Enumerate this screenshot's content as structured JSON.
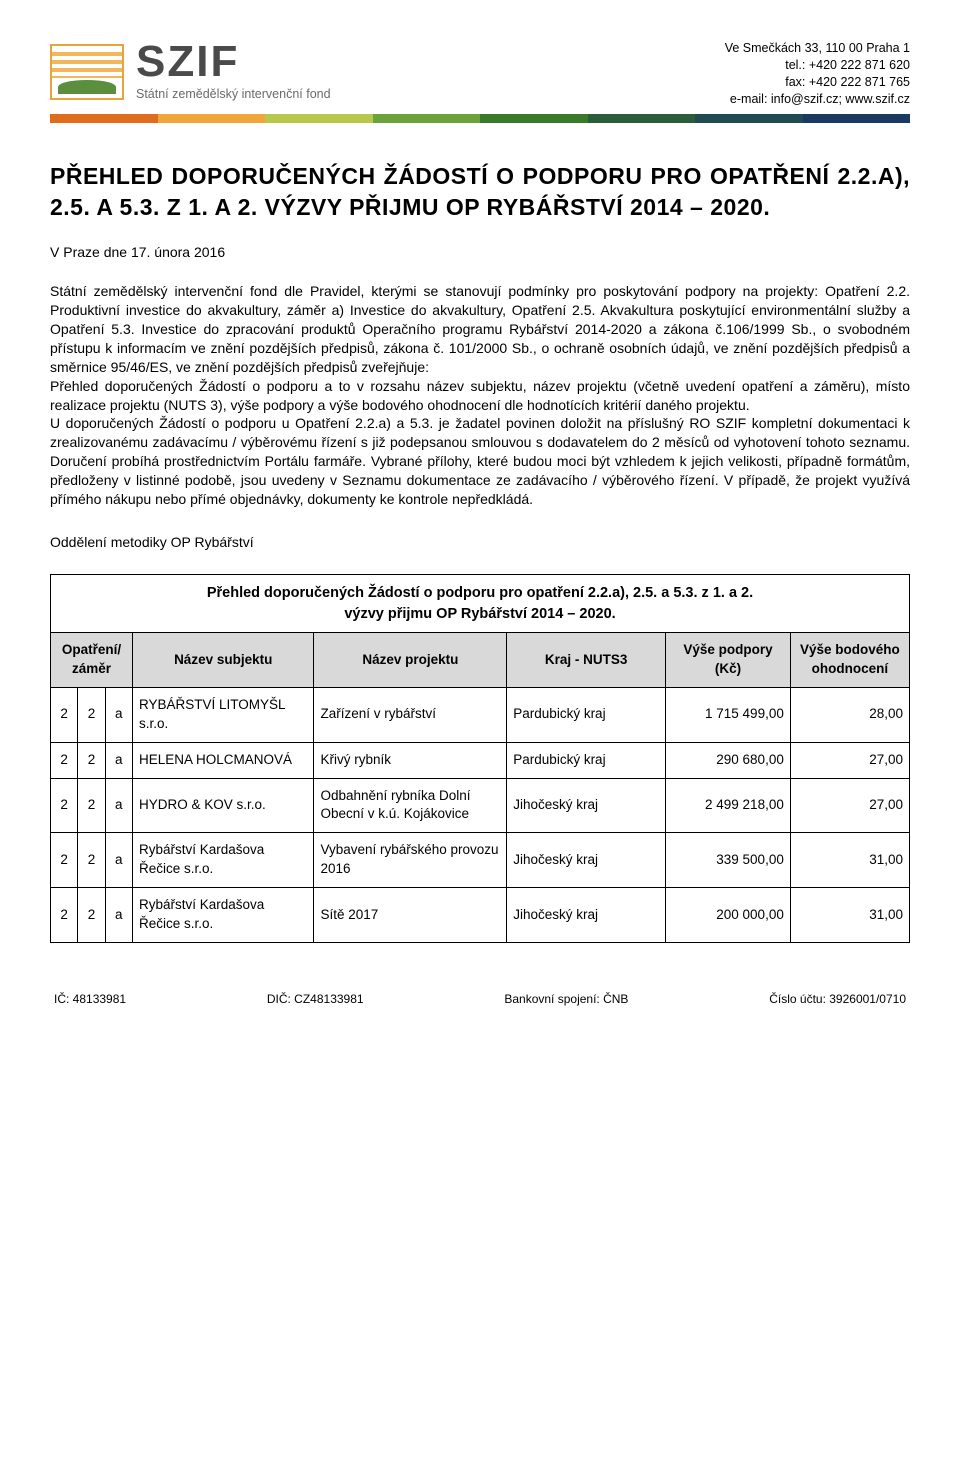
{
  "header": {
    "logo_main": "SZIF",
    "logo_sub": "Státní zemědělský intervenční fond",
    "address": {
      "line1": "Ve Smečkách 33, 110 00 Praha 1",
      "line2": "tel.: +420 222 871 620",
      "line3": "fax: +420 222 871 765",
      "line4": "e-mail: info@szif.cz; www.szif.cz"
    },
    "bar_colors": [
      "#e06c1d",
      "#f0a63a",
      "#b7c84a",
      "#6aa33b",
      "#3a7a2a",
      "#2a5e3a",
      "#1f4c50",
      "#1a3a60"
    ]
  },
  "title": "PŘEHLED DOPORUČENÝCH ŽÁDOSTÍ O PODPORU PRO OPATŘENÍ 2.2.A), 2.5. A 5.3. Z 1. A 2. VÝZVY PŘIJMU OP RYBÁŘSTVÍ 2014 – 2020.",
  "date_line": "V Praze dne 17. února 2016",
  "body": {
    "p1": "Státní zemědělský intervenční fond dle Pravidel, kterými se stanovují podmínky pro poskytování podpory na projekty: Opatření 2.2. Produktivní investice do akvakultury, záměr a) Investice do akvakultury, Opatření 2.5. Akvakultura poskytující environmentální služby a Opatření 5.3. Investice do zpracování produktů Operačního programu Rybářství 2014-2020 a zákona č.106/1999 Sb., o svobodném přístupu k informacím ve znění pozdějších předpisů, zákona č. 101/2000 Sb., o ochraně osobních údajů, ve znění pozdějších předpisů a směrnice 95/46/ES, ve znění pozdějších předpisů zveřejňuje:",
    "p2": "Přehled doporučených Žádostí o podporu a to v rozsahu název subjektu, název projektu (včetně uvedení opatření a záměru), místo realizace projektu (NUTS 3), výše podpory a výše bodového ohodnocení dle hodnotících kritérií daného projektu.",
    "p3": "U doporučených Žádostí o podporu u Opatření 2.2.a) a 5.3. je žadatel povinen doložit na příslušný RO SZIF kompletní dokumentaci k zrealizovanému zadávacímu / výběrovému řízení s již podepsanou smlouvou s dodavatelem do 2 měsíců od vyhotovení tohoto seznamu. Doručení probíhá prostřednictvím Portálu farmáře. Vybrané přílohy, které budou moci být vzhledem k jejich velikosti, případně formátům, předloženy v listinné podobě, jsou uvedeny v Seznamu dokumentace ze zadávacího / výběrového řízení. V případě, že projekt využívá přímého nákupu nebo přímé objednávky, dokumenty ke kontrole nepředkládá."
  },
  "department": "Oddělení metodiky OP Rybářství",
  "table": {
    "title_l1": "Přehled doporučených Žádostí o podporu pro opatření 2.2.a), 2.5. a 5.3. z 1. a 2.",
    "title_l2": "výzvy přijmu OP Rybářství 2014 – 2020.",
    "columns": {
      "c1": "Opatření/ záměr",
      "c2": "Název subjektu",
      "c3": "Název projektu",
      "c4": "Kraj - NUTS3",
      "c5": "Výše podpory (Kč)",
      "c6": "Výše bodového ohodnocení"
    },
    "rows": [
      {
        "a": "2",
        "b": "2",
        "c": "a",
        "subj": "RYBÁŘSTVÍ LITOMYŠL s.r.o.",
        "proj": "Zařízení v rybářství",
        "kraj": "Pardubický kraj",
        "pod": "1 715 499,00",
        "bod": "28,00"
      },
      {
        "a": "2",
        "b": "2",
        "c": "a",
        "subj": "HELENA HOLCMANOVÁ",
        "proj": "Křivý rybník",
        "kraj": "Pardubický kraj",
        "pod": "290 680,00",
        "bod": "27,00"
      },
      {
        "a": "2",
        "b": "2",
        "c": "a",
        "subj": "HYDRO & KOV s.r.o.",
        "proj": "Odbahnění rybníka Dolní Obecní v k.ú. Kojákovice",
        "kraj": "Jihočeský kraj",
        "pod": "2 499 218,00",
        "bod": "27,00"
      },
      {
        "a": "2",
        "b": "2",
        "c": "a",
        "subj": "Rybářství Kardašova Řečice s.r.o.",
        "proj": "Vybavení rybářského provozu 2016",
        "kraj": "Jihočeský kraj",
        "pod": "339 500,00",
        "bod": "31,00"
      },
      {
        "a": "2",
        "b": "2",
        "c": "a",
        "subj": "Rybářství Kardašova Řečice s.r.o.",
        "proj": "Sítě 2017",
        "kraj": "Jihočeský kraj",
        "pod": "200 000,00",
        "bod": "31,00"
      }
    ]
  },
  "footer": {
    "ic": "IČ: 48133981",
    "dic": "DIČ: CZ48133981",
    "bank": "Bankovní spojení: ČNB",
    "acct": "Číslo účtu: 3926001/0710"
  }
}
